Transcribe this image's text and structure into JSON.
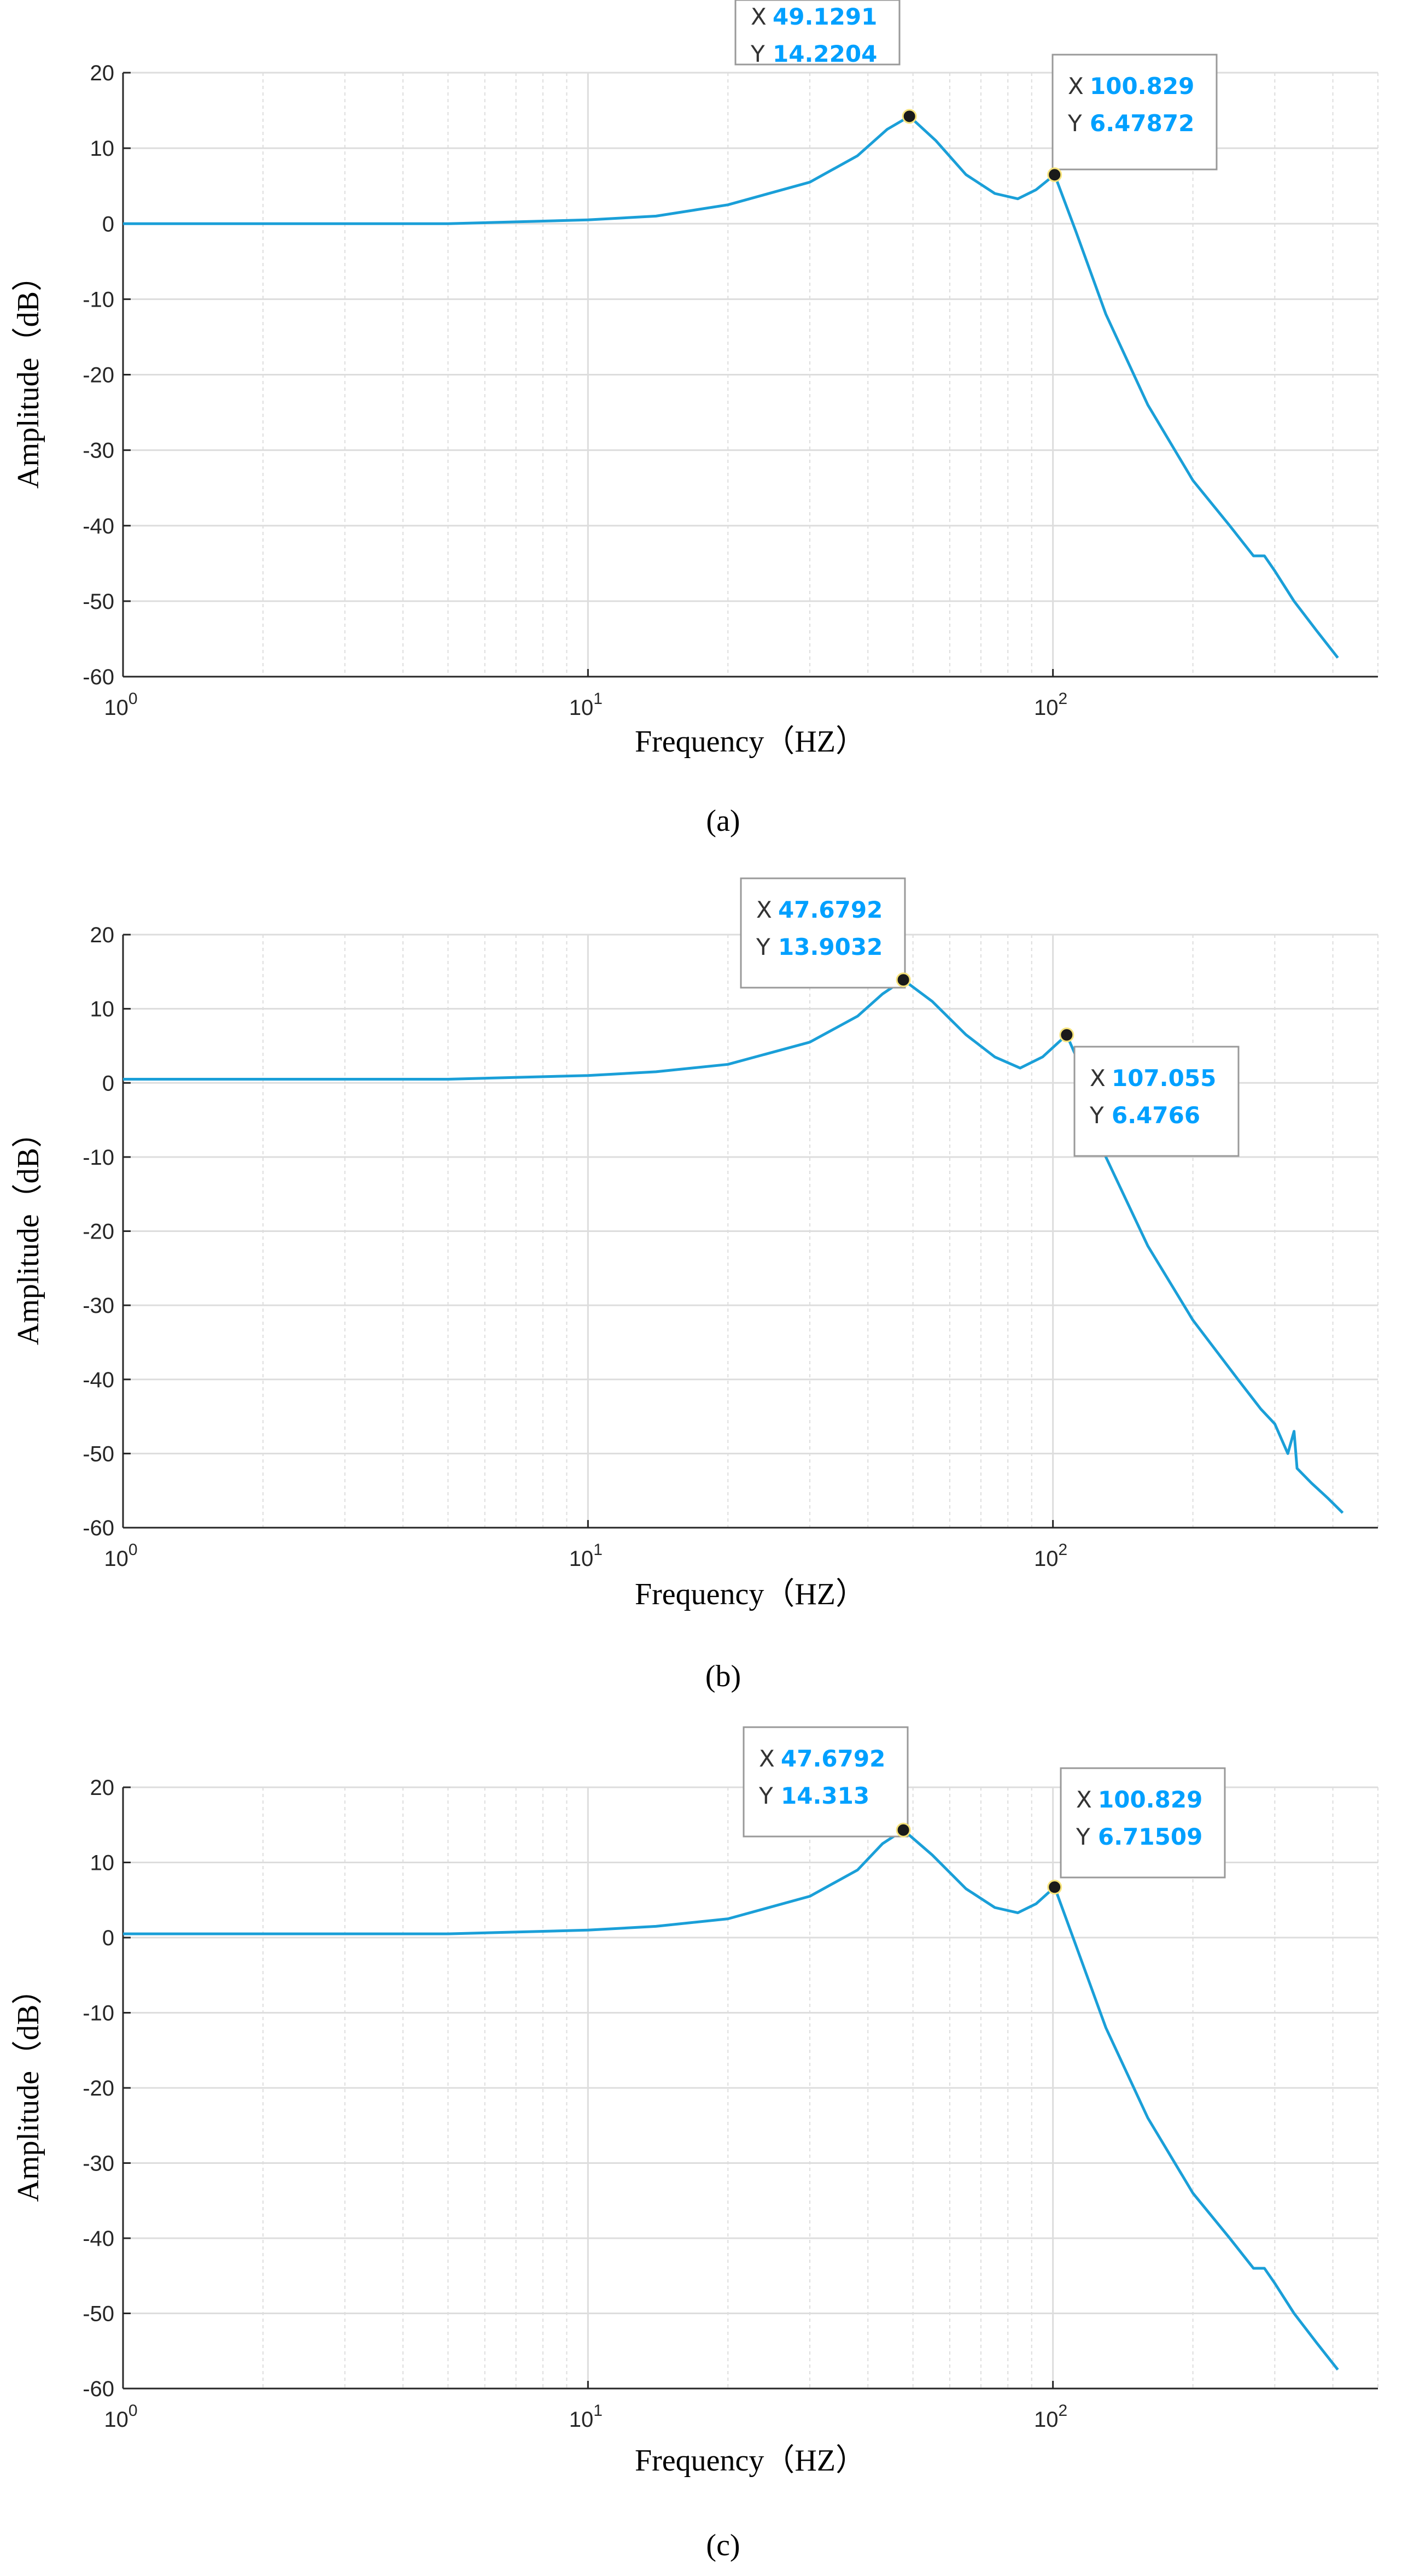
{
  "colors": {
    "line": "#1a9fd8",
    "grid": "#dddddd",
    "axis": "#262626",
    "tip_value": "#00a0ff"
  },
  "chart_data": [
    {
      "type": "line",
      "panel_label": "(a)",
      "xlabel": "Frequency（HZ）",
      "ylabel": "Amplitude（dB）",
      "xscale": "log",
      "xlim": [
        1,
        500
      ],
      "ylim": [
        -60,
        20
      ],
      "x_ticks": [
        {
          "base": "10",
          "exp": "0"
        },
        {
          "base": "10",
          "exp": "1"
        },
        {
          "base": "10",
          "exp": "2"
        }
      ],
      "y_ticks": [
        "20",
        "10",
        "0",
        "-10",
        "-20",
        "-30",
        "-40",
        "-50",
        "-60"
      ],
      "grid": true,
      "series": [
        {
          "name": "amplitude",
          "x": [
            1,
            5,
            10,
            14,
            20,
            30,
            38,
            44,
            49.13,
            56,
            65,
            75,
            84,
            92,
            100.83,
            112,
            130,
            160,
            200,
            240,
            270,
            285,
            300,
            330,
            370,
            410
          ],
          "y": [
            0,
            0,
            0.5,
            1,
            2.5,
            5.5,
            9,
            12.5,
            14.22,
            11,
            6.5,
            4,
            3.3,
            4.5,
            6.48,
            -1,
            -12,
            -24,
            -34,
            -40,
            -44,
            -44,
            -46,
            -50,
            -54,
            -57.5
          ]
        }
      ],
      "annotations": [
        {
          "x_label": "X",
          "x_value": "49.1291",
          "y_label": "Y",
          "y_value": "14.2204",
          "x": 49.1291,
          "y": 14.2204
        },
        {
          "x_label": "X",
          "x_value": "100.829",
          "y_label": "Y",
          "y_value": "6.47872",
          "x": 100.829,
          "y": 6.47872
        }
      ]
    },
    {
      "type": "line",
      "panel_label": "(b)",
      "xlabel": "Frequency（HZ）",
      "ylabel": "Amplitude（dB）",
      "xscale": "log",
      "xlim": [
        1,
        500
      ],
      "ylim": [
        -60,
        20
      ],
      "x_ticks": [
        {
          "base": "10",
          "exp": "0"
        },
        {
          "base": "10",
          "exp": "1"
        },
        {
          "base": "10",
          "exp": "2"
        }
      ],
      "y_ticks": [
        "20",
        "10",
        "0",
        "-10",
        "-20",
        "-30",
        "-40",
        "-50",
        "-60"
      ],
      "grid": true,
      "series": [
        {
          "name": "amplitude",
          "x": [
            1,
            5,
            10,
            14,
            20,
            30,
            38,
            43,
            47.68,
            55,
            65,
            75,
            85,
            95,
            107.06,
            115,
            130,
            160,
            200,
            250,
            280,
            300,
            320,
            330,
            335,
            360,
            390,
            420
          ],
          "y": [
            0.5,
            0.5,
            1,
            1.5,
            2.5,
            5.5,
            9,
            12,
            13.9,
            11,
            6.5,
            3.5,
            2,
            3.5,
            6.48,
            2,
            -10,
            -22,
            -32,
            -40,
            -44,
            -46,
            -50,
            -47,
            -52,
            -54,
            -56,
            -58
          ]
        }
      ],
      "annotations": [
        {
          "x_label": "X",
          "x_value": "47.6792",
          "y_label": "Y",
          "y_value": "13.9032",
          "x": 47.6792,
          "y": 13.9032
        },
        {
          "x_label": "X",
          "x_value": "107.055",
          "y_label": "Y",
          "y_value": "6.4766",
          "x": 107.055,
          "y": 6.4766
        }
      ]
    },
    {
      "type": "line",
      "panel_label": "(c)",
      "xlabel": "Frequency（HZ）",
      "ylabel": "Amplitude（dB）",
      "xscale": "log",
      "xlim": [
        1,
        500
      ],
      "ylim": [
        -60,
        20
      ],
      "x_ticks": [
        {
          "base": "10",
          "exp": "0"
        },
        {
          "base": "10",
          "exp": "1"
        },
        {
          "base": "10",
          "exp": "2"
        }
      ],
      "y_ticks": [
        "20",
        "10",
        "0",
        "-10",
        "-20",
        "-30",
        "-40",
        "-50",
        "-60"
      ],
      "grid": true,
      "series": [
        {
          "name": "amplitude",
          "x": [
            1,
            5,
            10,
            14,
            20,
            30,
            38,
            43,
            47.68,
            55,
            65,
            75,
            84,
            92,
            100.83,
            112,
            130,
            160,
            200,
            240,
            270,
            285,
            300,
            330,
            370,
            410
          ],
          "y": [
            0.5,
            0.5,
            1,
            1.5,
            2.5,
            5.5,
            9,
            12.5,
            14.31,
            11,
            6.5,
            4,
            3.3,
            4.5,
            6.72,
            -1,
            -12,
            -24,
            -34,
            -40,
            -44,
            -44,
            -46,
            -50,
            -54,
            -57.5
          ]
        }
      ],
      "annotations": [
        {
          "x_label": "X",
          "x_value": "47.6792",
          "y_label": "Y",
          "y_value": "14.313",
          "x": 47.6792,
          "y": 14.313
        },
        {
          "x_label": "X",
          "x_value": "100.829",
          "y_label": "Y",
          "y_value": "6.71509",
          "x": 100.829,
          "y": 6.71509
        }
      ]
    }
  ]
}
